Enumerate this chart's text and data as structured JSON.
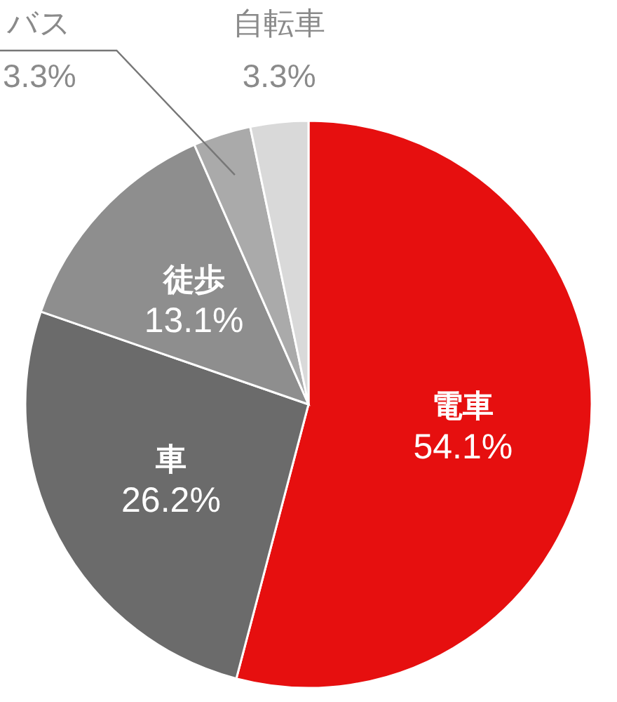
{
  "chart_data": {
    "type": "pie",
    "categories": [
      "電車",
      "車",
      "徒歩",
      "バス",
      "自転車"
    ],
    "values": [
      54.1,
      26.2,
      13.1,
      3.3,
      3.3
    ],
    "colors": [
      "#e60f0f",
      "#6b6b6b",
      "#8e8e8e",
      "#aaaaaa",
      "#d9d9d9"
    ],
    "value_labels": [
      "54.1%",
      "26.2%",
      "13.1%",
      "3.3%",
      "3.3%"
    ]
  }
}
